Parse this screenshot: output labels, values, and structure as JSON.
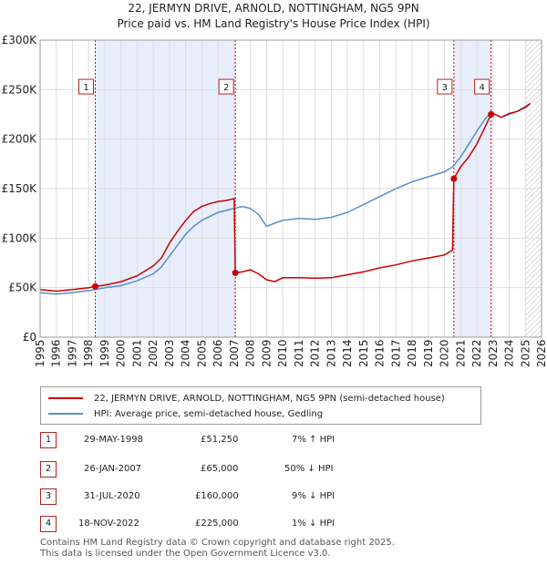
{
  "title_line1": "22, JERMYN DRIVE, ARNOLD, NOTTINGHAM, NG5 9PN",
  "title_line2": "Price paid vs. HM Land Registry's House Price Index (HPI)",
  "colors": {
    "property": "#cc0000",
    "hpi": "#5b8dc9",
    "shade": "#e8eefb",
    "grid": "#dddddd",
    "marker_border": "#b22222"
  },
  "legend": {
    "property": "22, JERMYN DRIVE, ARNOLD, NOTTINGHAM, NG5 9PN (semi-detached house)",
    "hpi": "HPI: Average price, semi-detached house, Gedling"
  },
  "transactions": [
    {
      "num": "1",
      "date": "29-MAY-1998",
      "price": "£51,250",
      "hpi": "7% ↑ HPI"
    },
    {
      "num": "2",
      "date": "26-JAN-2007",
      "price": "£65,000",
      "hpi": "50% ↓ HPI"
    },
    {
      "num": "3",
      "date": "31-JUL-2020",
      "price": "£160,000",
      "hpi": "9% ↓ HPI"
    },
    {
      "num": "4",
      "date": "18-NOV-2022",
      "price": "£225,000",
      "hpi": "1% ↓ HPI"
    }
  ],
  "footer_line1": "Contains HM Land Registry data © Crown copyright and database right 2025.",
  "footer_line2": "This data is licensed under the Open Government Licence v3.0.",
  "chart_data": {
    "type": "line",
    "title": "Price paid vs. HM Land Registry's House Price Index (HPI)",
    "xlim": [
      1995,
      2026
    ],
    "ylim": [
      0,
      300000
    ],
    "x_ticks": [
      1995,
      1996,
      1997,
      1998,
      1999,
      2000,
      2001,
      2002,
      2003,
      2004,
      2005,
      2006,
      2007,
      2008,
      2009,
      2010,
      2011,
      2012,
      2013,
      2014,
      2015,
      2016,
      2017,
      2018,
      2019,
      2020,
      2021,
      2022,
      2023,
      2024,
      2025,
      2026
    ],
    "y_ticks": [
      0,
      50000,
      100000,
      150000,
      200000,
      250000,
      300000
    ],
    "y_tick_labels": [
      "£0",
      "£50K",
      "£100K",
      "£150K",
      "£200K",
      "£250K",
      "£300K"
    ],
    "shaded_ranges": [
      [
        1998.41,
        2007.07
      ],
      [
        2020.58,
        2022.88
      ]
    ],
    "hatched_from": 2025.0,
    "sale_points": [
      {
        "label": "1",
        "x": 1998.41,
        "y": 51250
      },
      {
        "label": "2",
        "x": 2007.07,
        "y": 65000
      },
      {
        "label": "3",
        "x": 2020.58,
        "y": 160000
      },
      {
        "label": "4",
        "x": 2022.88,
        "y": 225000
      }
    ],
    "marker_label_y": 253000,
    "series": [
      {
        "name": "22, JERMYN DRIVE, ARNOLD, NOTTINGHAM, NG5 9PN (semi-detached house)",
        "x": [
          1995.0,
          1996.0,
          1997.0,
          1998.0,
          1998.41,
          1999.0,
          2000.0,
          2001.0,
          2002.0,
          2002.5,
          2003.0,
          2003.5,
          2004.0,
          2004.5,
          2005.0,
          2005.5,
          2006.0,
          2006.5,
          2007.0,
          2007.07,
          2007.5,
          2008.0,
          2008.5,
          2009.0,
          2009.5,
          2010.0,
          2011.0,
          2012.0,
          2013.0,
          2014.0,
          2015.0,
          2016.0,
          2017.0,
          2018.0,
          2019.0,
          2020.0,
          2020.5,
          2020.58,
          2021.0,
          2021.5,
          2022.0,
          2022.5,
          2022.88,
          2023.0,
          2023.5,
          2024.0,
          2024.5,
          2025.0,
          2025.3
        ],
        "values": [
          48000,
          46500,
          48000,
          50000,
          51250,
          52500,
          56000,
          62000,
          72000,
          80000,
          95000,
          107000,
          118000,
          127000,
          132000,
          135000,
          137000,
          138000,
          140000,
          65000,
          66000,
          68000,
          64000,
          58000,
          56000,
          60000,
          60000,
          59500,
          60000,
          63000,
          66000,
          70000,
          73000,
          77000,
          80000,
          83000,
          88000,
          160000,
          172000,
          182000,
          195000,
          212000,
          225000,
          226000,
          222000,
          226000,
          228000,
          232000,
          236000
        ]
      },
      {
        "name": "HPI: Average price, semi-detached house, Gedling",
        "x": [
          1995.0,
          1996.0,
          1997.0,
          1998.0,
          1998.41,
          1999.0,
          2000.0,
          2001.0,
          2002.0,
          2002.5,
          2003.0,
          2003.5,
          2004.0,
          2004.5,
          2005.0,
          2005.5,
          2006.0,
          2006.5,
          2007.0,
          2007.5,
          2008.0,
          2008.5,
          2009.0,
          2009.5,
          2010.0,
          2011.0,
          2012.0,
          2013.0,
          2014.0,
          2015.0,
          2016.0,
          2017.0,
          2018.0,
          2019.0,
          2020.0,
          2020.5,
          2021.0,
          2021.5,
          2022.0,
          2022.5,
          2022.88,
          2023.0,
          2023.5,
          2024.0,
          2024.5,
          2025.0,
          2025.3
        ],
        "values": [
          45000,
          43500,
          45000,
          47000,
          48000,
          50000,
          52000,
          57000,
          64000,
          71000,
          82000,
          93000,
          104000,
          112000,
          118000,
          122000,
          126000,
          128000,
          130000,
          132000,
          130000,
          124000,
          112000,
          115000,
          118000,
          120000,
          119000,
          121000,
          126000,
          134000,
          142000,
          150000,
          157000,
          162000,
          167000,
          172000,
          182000,
          195000,
          208000,
          220000,
          227000,
          226000,
          222000,
          225000,
          228000,
          233000,
          236000
        ]
      }
    ]
  }
}
